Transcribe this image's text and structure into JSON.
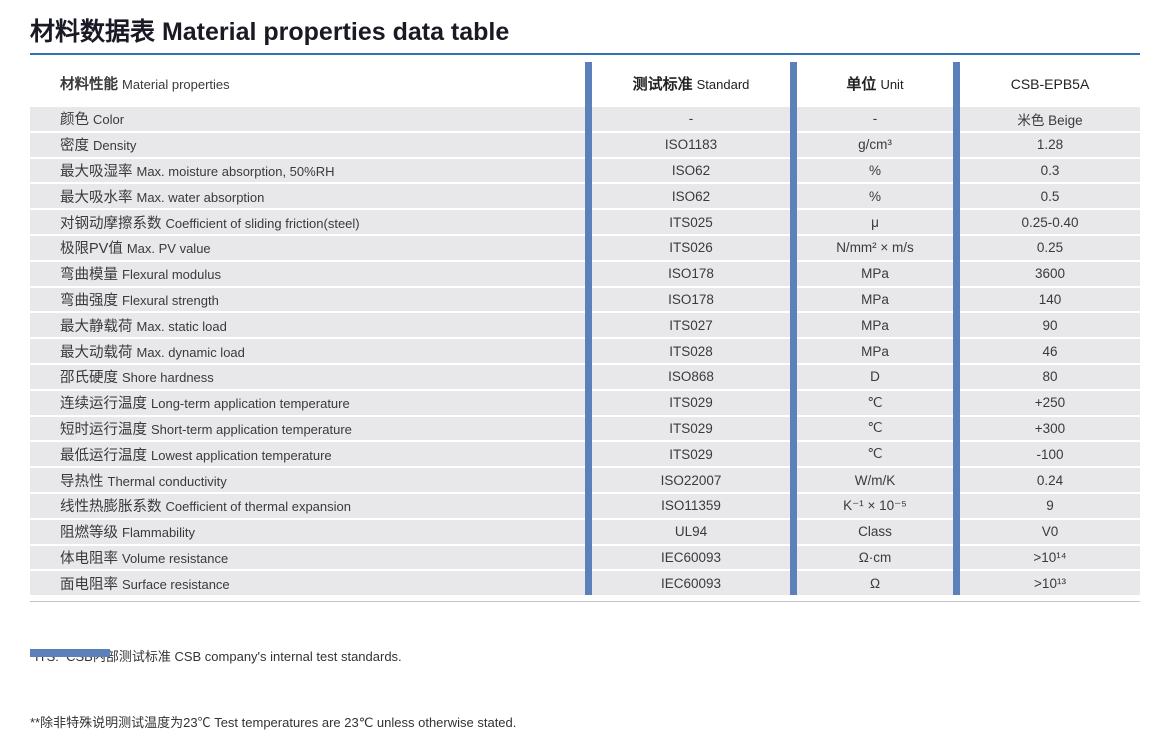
{
  "page_title": "材料数据表 Material properties data table",
  "colors": {
    "title_rule_blue": "#2e74b5",
    "column_separator_blue": "#5c81ba",
    "row_background_gray": "#e8e8ea"
  },
  "table": {
    "headers": {
      "property_zh": "材料性能",
      "property_en": "Material properties",
      "standard_zh": "测试标准",
      "standard_en": "Standard",
      "unit_zh": "单位",
      "unit_en": "Unit",
      "grade": "CSB-EPB5A"
    },
    "rows": [
      {
        "zh": "颜色",
        "en": "Color",
        "standard": "-",
        "unit": "-",
        "value": "米色 Beige"
      },
      {
        "zh": "密度",
        "en": "Density",
        "standard": "ISO1183",
        "unit": "g/cm³",
        "value": "1.28"
      },
      {
        "zh": "最大吸湿率",
        "en": "Max. moisture absorption, 50%RH",
        "standard": "ISO62",
        "unit": "%",
        "value": "0.3"
      },
      {
        "zh": "最大吸水率",
        "en": "Max. water absorption",
        "standard": "ISO62",
        "unit": "%",
        "value": "0.5"
      },
      {
        "zh": "对钢动摩擦系数",
        "en": "Coefficient of sliding friction(steel)",
        "standard": "ITS025",
        "unit": "μ",
        "value": "0.25-0.40"
      },
      {
        "zh": "极限PV值",
        "en": "Max. PV value",
        "standard": "ITS026",
        "unit": "N/mm² × m/s",
        "value": "0.25"
      },
      {
        "zh": "弯曲模量",
        "en": "Flexural modulus",
        "standard": "ISO178",
        "unit": "MPa",
        "value": "3600"
      },
      {
        "zh": "弯曲强度",
        "en": "Flexural strength",
        "standard": "ISO178",
        "unit": "MPa",
        "value": "140"
      },
      {
        "zh": "最大静载荷",
        "en": "Max. static load",
        "standard": "ITS027",
        "unit": "MPa",
        "value": "90"
      },
      {
        "zh": "最大动载荷",
        "en": "Max. dynamic load",
        "standard": "ITS028",
        "unit": "MPa",
        "value": "46"
      },
      {
        "zh": "邵氏硬度",
        "en": "Shore hardness",
        "standard": "ISO868",
        "unit": "D",
        "value": "80"
      },
      {
        "zh": "连续运行温度",
        "en": "Long-term application temperature",
        "standard": "ITS029",
        "unit": "℃",
        "value": "+250"
      },
      {
        "zh": "短时运行温度",
        "en": "Short-term application temperature",
        "standard": "ITS029",
        "unit": "℃",
        "value": "+300"
      },
      {
        "zh": "最低运行温度",
        "en": "Lowest application temperature",
        "standard": "ITS029",
        "unit": "℃",
        "value": "-100"
      },
      {
        "zh": "导热性",
        "en": "Thermal conductivity",
        "standard": "ISO22007",
        "unit": "W/m/K",
        "value": "0.24"
      },
      {
        "zh": "线性热膨胀系数",
        "en": "Coefficient of thermal expansion",
        "standard": "ISO11359",
        "unit": "K⁻¹ × 10⁻⁵",
        "value": "9"
      },
      {
        "zh": "阻燃等级",
        "en": "Flammability",
        "standard": "UL94",
        "unit": "Class",
        "value": "V0"
      },
      {
        "zh": "体电阻率",
        "en": "Volume resistance",
        "standard": "IEC60093",
        "unit": "Ω·cm",
        "value": ">10¹⁴"
      },
      {
        "zh": "面电阻率",
        "en": "Surface resistance",
        "standard": "IEC60093",
        "unit": "Ω",
        "value": ">10¹³"
      }
    ]
  },
  "footnotes": [
    "*ITS:  CSB内部测试标准 CSB company's internal test standards.",
    "**除非特殊说明测试温度为23℃ Test temperatures are 23℃ unless otherwise stated."
  ]
}
